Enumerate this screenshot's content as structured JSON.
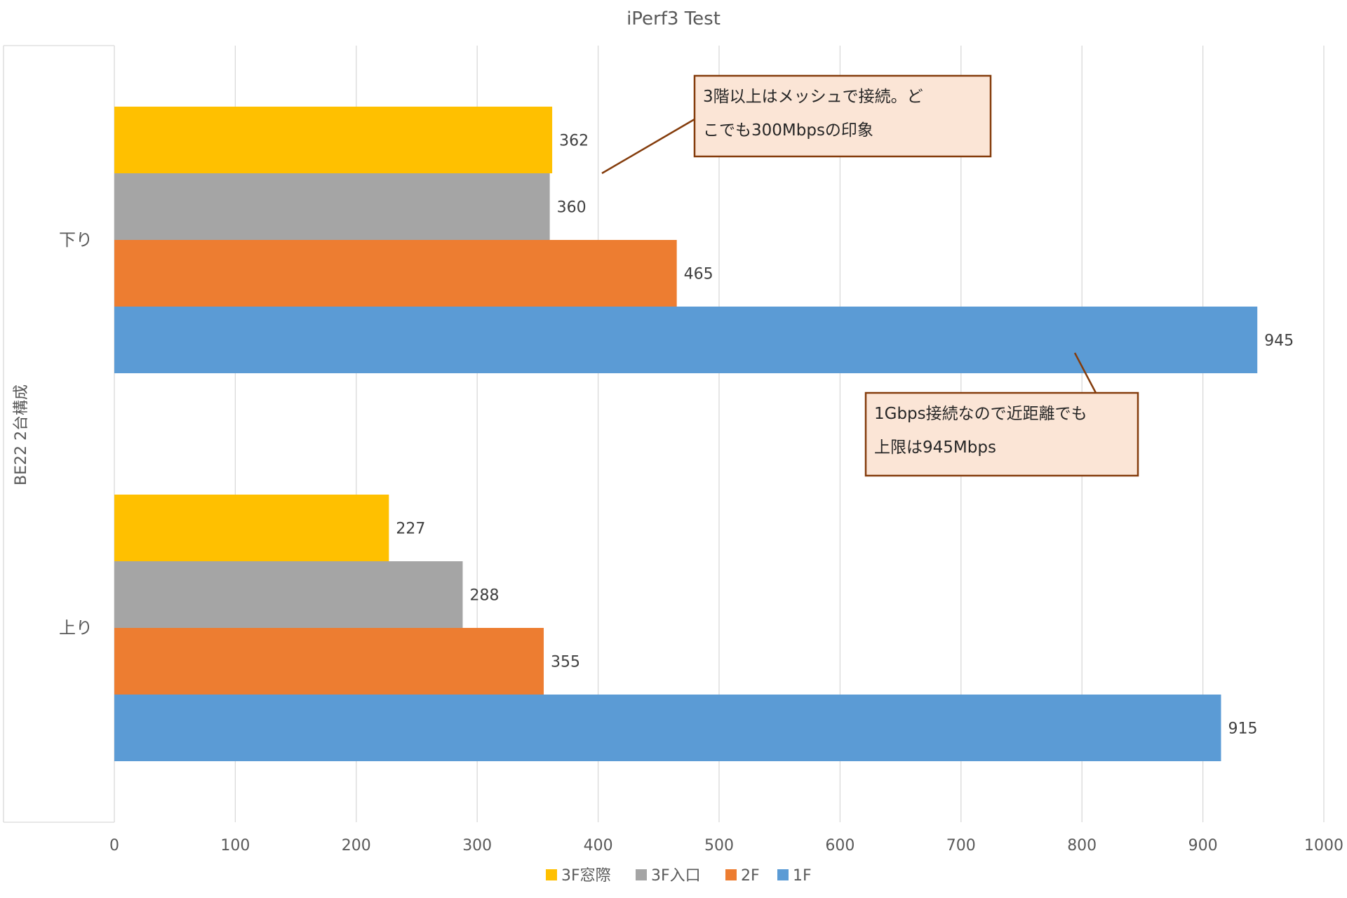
{
  "chart_data": {
    "type": "bar",
    "orientation": "horizontal",
    "title": "iPerf3 Test",
    "group_label": "BE22 2台構成",
    "categories": [
      "下り",
      "上り"
    ],
    "series": [
      {
        "name": "3F窓際",
        "color": "#FFC000",
        "values": [
          362,
          227
        ]
      },
      {
        "name": "3F入口",
        "color": "#A5A5A5",
        "values": [
          360,
          288
        ]
      },
      {
        "name": "2F",
        "color": "#ED7D31",
        "values": [
          465,
          355
        ]
      },
      {
        "name": "1F",
        "color": "#5B9BD5",
        "values": [
          945,
          915
        ]
      }
    ],
    "xlim": [
      0,
      1000
    ],
    "xticks": [
      0,
      100,
      200,
      300,
      400,
      500,
      600,
      700,
      800,
      900,
      1000
    ],
    "grid": true,
    "legend_position": "bottom",
    "annotations": [
      {
        "lines": [
          "3階以上はメッシュで接続。ど",
          "こでも300Mbpsの印象"
        ]
      },
      {
        "lines": [
          "1Gbps接続なので近距離でも",
          "上限は945Mbps"
        ]
      }
    ]
  },
  "colors": {
    "gridline": "#D9D9D9",
    "text": "#595959",
    "callout_fill": "#FBE5D6",
    "callout_border": "#843C0C"
  }
}
